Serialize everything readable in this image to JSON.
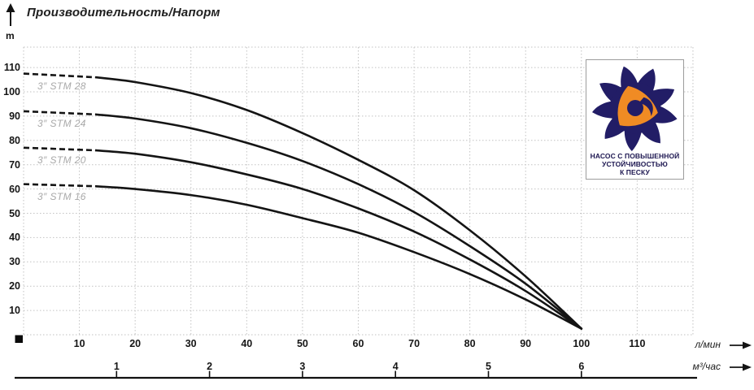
{
  "title": "Производительность/Напорм",
  "y_axis_unit": "m",
  "x_axis_primary_unit": "л/мин",
  "x_axis_secondary_unit": "м³/час",
  "badge": {
    "line1": "НАСОС С ПОВЫШЕННОЙ",
    "line2": "УСТОЙЧИВОСТЬЮ",
    "line3": "К ПЕСКУ",
    "navy": "#221d66",
    "orange": "#f08b24"
  },
  "colors": {
    "curve": "#141414",
    "grid": "#c2c2c2",
    "axis": "#111111",
    "series_label": "#a8a8a8"
  },
  "chart_data": {
    "type": "line",
    "title": "Производительность/Напорм",
    "ylabel": "m",
    "xlabel": "л/мин",
    "xlabel_secondary": "м³/час",
    "xlim_lmin": [
      0,
      120
    ],
    "ylim_m": [
      0,
      118
    ],
    "grid": "dotted",
    "legend_position": "labels-near-curves",
    "y_ticks_m": [
      10,
      20,
      30,
      40,
      50,
      60,
      70,
      80,
      90,
      100,
      110
    ],
    "x_ticks_lmin": [
      10,
      20,
      30,
      40,
      50,
      60,
      70,
      80,
      90,
      100,
      110
    ],
    "x_ticks_m3h": [
      1,
      2,
      3,
      4,
      5,
      6
    ],
    "m3h_to_lmin": 16.6667,
    "dashed_until_lmin": 13,
    "series": [
      {
        "name": "3″ STM  28",
        "points": [
          [
            0,
            107.5
          ],
          [
            10,
            106.8
          ],
          [
            20,
            104
          ],
          [
            30,
            99.5
          ],
          [
            40,
            92.5
          ],
          [
            50,
            83
          ],
          [
            60,
            72
          ],
          [
            70,
            59.5
          ],
          [
            80,
            43
          ],
          [
            90,
            24
          ],
          [
            100,
            2.5
          ]
        ]
      },
      {
        "name": "3″ STM  24",
        "points": [
          [
            0,
            92
          ],
          [
            10,
            91.4
          ],
          [
            20,
            89
          ],
          [
            30,
            85
          ],
          [
            40,
            79
          ],
          [
            50,
            71.5
          ],
          [
            60,
            62
          ],
          [
            70,
            50.5
          ],
          [
            80,
            36.5
          ],
          [
            90,
            21
          ],
          [
            100,
            2.5
          ]
        ]
      },
      {
        "name": "3″ STM  20",
        "points": [
          [
            0,
            77
          ],
          [
            10,
            76.5
          ],
          [
            20,
            74.5
          ],
          [
            30,
            71
          ],
          [
            40,
            66
          ],
          [
            50,
            60
          ],
          [
            60,
            52
          ],
          [
            70,
            42.5
          ],
          [
            80,
            31
          ],
          [
            90,
            18
          ],
          [
            100,
            2.5
          ]
        ]
      },
      {
        "name": "3″ STM 16",
        "points": [
          [
            0,
            62
          ],
          [
            10,
            61.6
          ],
          [
            20,
            60
          ],
          [
            30,
            57.5
          ],
          [
            40,
            53.5
          ],
          [
            50,
            48
          ],
          [
            60,
            42
          ],
          [
            70,
            34
          ],
          [
            80,
            25
          ],
          [
            90,
            14.5
          ],
          [
            100,
            2.5
          ]
        ]
      }
    ]
  }
}
